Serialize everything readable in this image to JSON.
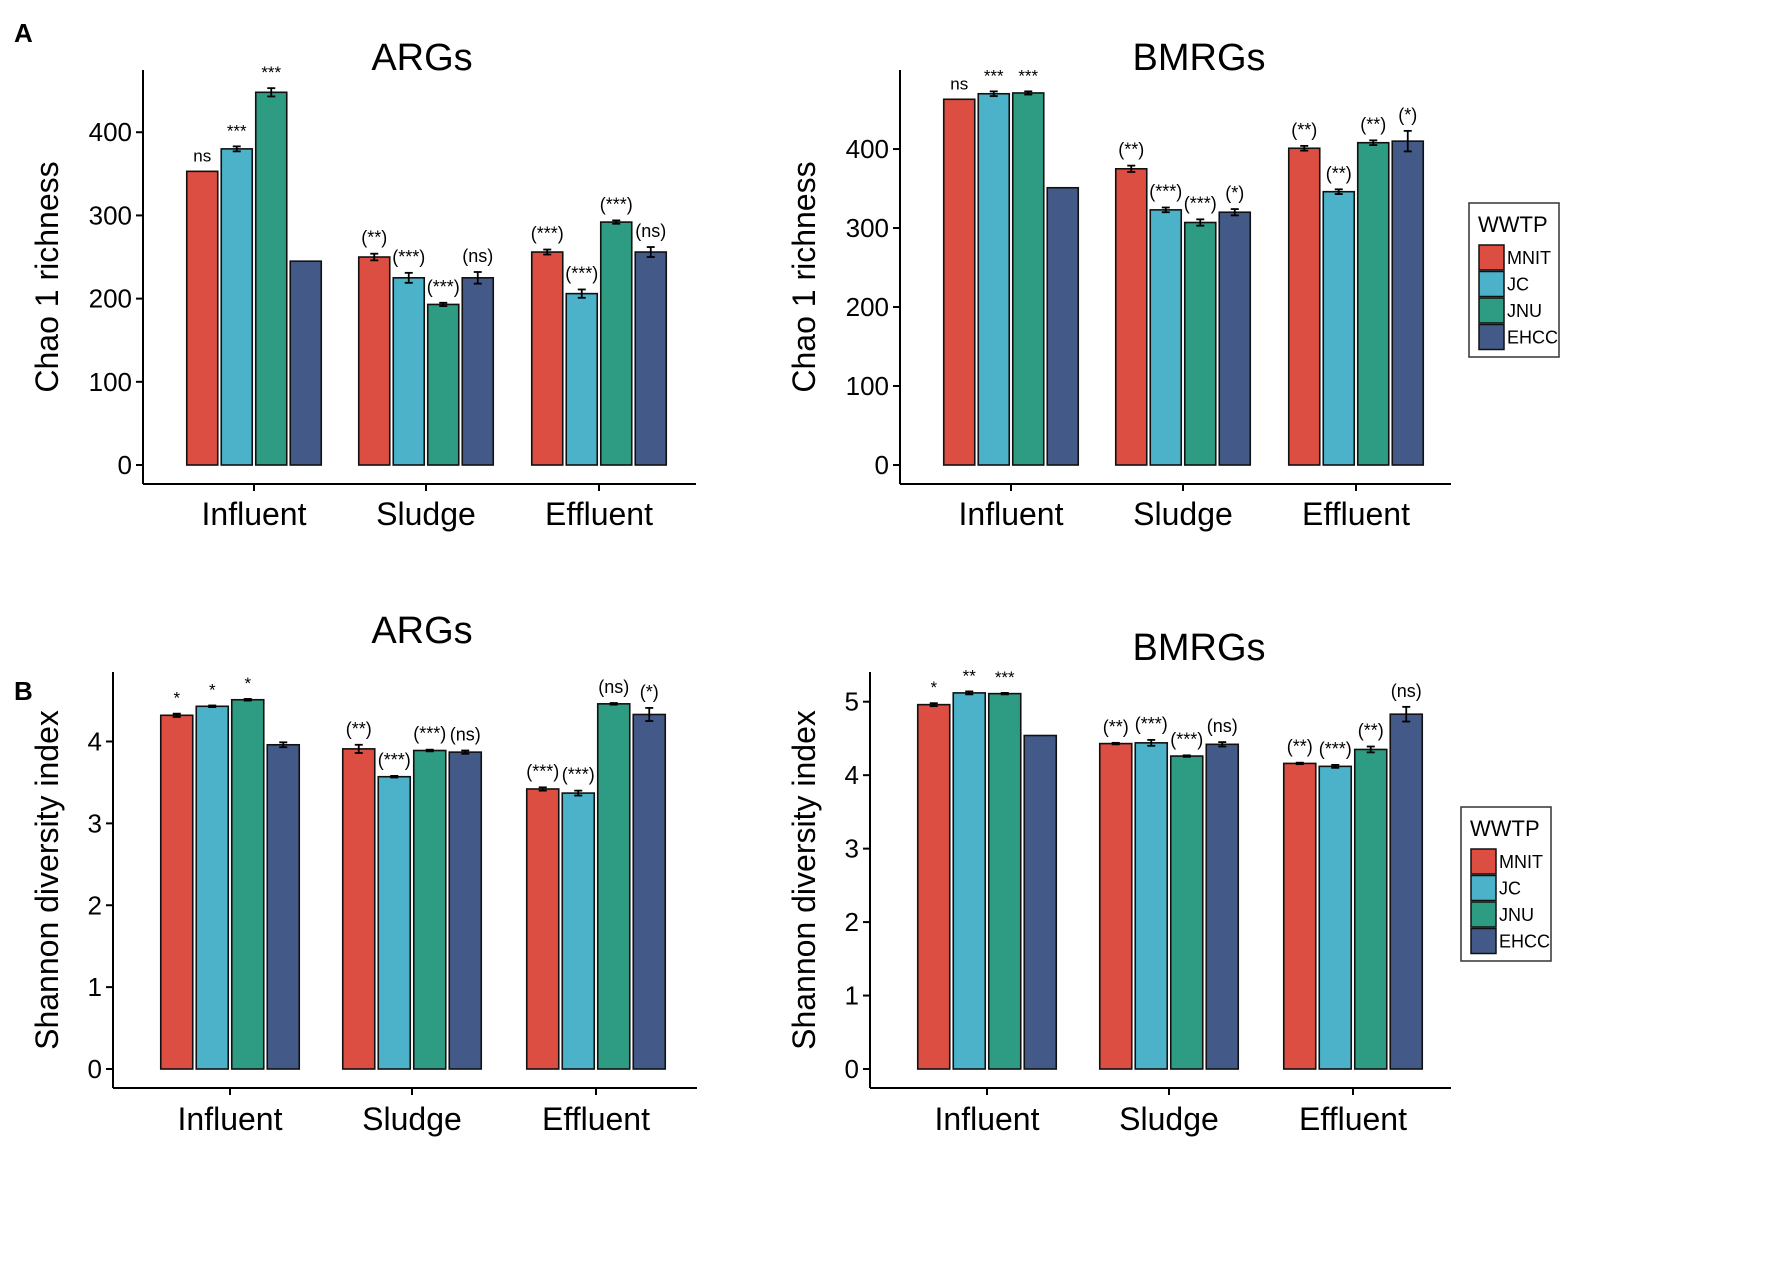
{
  "colors": {
    "MNIT": "#dc4e41",
    "JC": "#4bb2c9",
    "JNU": "#2e9c82",
    "EHCC": "#435a88"
  },
  "legend": {
    "title": "WWTP",
    "entries": [
      "MNIT",
      "JC",
      "JNU",
      "EHCC"
    ]
  },
  "panel_labels": [
    "A",
    "B"
  ],
  "chart_data": [
    {
      "type": "bar",
      "title": "ARGs",
      "ylabel": "Chao 1 richness",
      "ylim": [
        0,
        470
      ],
      "yticks": [
        0,
        100,
        200,
        300,
        400
      ],
      "categories": [
        "Influent",
        "Sludge",
        "Effluent"
      ],
      "series": [
        {
          "name": "MNIT",
          "values": [
            353,
            250,
            256
          ],
          "errors": [
            0,
            4,
            3
          ],
          "labels": [
            "ns",
            "(**)",
            "(***)"
          ]
        },
        {
          "name": "JC",
          "values": [
            380,
            225,
            206
          ],
          "errors": [
            3,
            6,
            5
          ],
          "labels": [
            "***",
            "(***)",
            "(***)"
          ]
        },
        {
          "name": "JNU",
          "values": [
            448,
            193,
            292
          ],
          "errors": [
            5,
            2,
            2
          ],
          "labels": [
            "***",
            "(***)",
            "(***)"
          ]
        },
        {
          "name": "EHCC",
          "values": [
            245,
            225,
            256
          ],
          "errors": [
            0,
            7,
            6
          ],
          "labels": [
            "",
            "(ns)",
            "(ns)"
          ]
        }
      ]
    },
    {
      "type": "bar",
      "title": "BMRGs",
      "ylabel": "Chao 1 richness",
      "ylim": [
        0,
        495
      ],
      "yticks": [
        0,
        100,
        200,
        300,
        400
      ],
      "categories": [
        "Influent",
        "Sludge",
        "Effluent"
      ],
      "series": [
        {
          "name": "MNIT",
          "values": [
            463,
            375,
            401
          ],
          "errors": [
            0,
            4,
            3
          ],
          "labels": [
            "ns",
            "(**)",
            "(**)"
          ]
        },
        {
          "name": "JC",
          "values": [
            470,
            323,
            346
          ],
          "errors": [
            3,
            3,
            3
          ],
          "labels": [
            "***",
            "(***)",
            "(**)"
          ]
        },
        {
          "name": "JNU",
          "values": [
            471,
            307,
            408
          ],
          "errors": [
            2,
            4,
            3
          ],
          "labels": [
            "***",
            "(***)",
            "(**)"
          ]
        },
        {
          "name": "EHCC",
          "values": [
            351,
            320,
            410
          ],
          "errors": [
            0,
            4,
            13
          ],
          "labels": [
            "",
            "(*)",
            "(*)"
          ]
        }
      ]
    },
    {
      "type": "bar",
      "title": "ARGs",
      "ylabel": "Shannon diversity index",
      "ylim": [
        0,
        4.8
      ],
      "yticks": [
        0,
        1,
        2,
        3,
        4
      ],
      "categories": [
        "Influent",
        "Sludge",
        "Effluent"
      ],
      "series": [
        {
          "name": "MNIT",
          "values": [
            4.32,
            3.91,
            3.42
          ],
          "errors": [
            0.02,
            0.05,
            0.02
          ],
          "labels": [
            "*",
            "(**)",
            "(***)"
          ]
        },
        {
          "name": "JC",
          "values": [
            4.43,
            3.57,
            3.37
          ],
          "errors": [
            0.01,
            0.01,
            0.03
          ],
          "labels": [
            "*",
            "(***)",
            "(***)"
          ]
        },
        {
          "name": "JNU",
          "values": [
            4.51,
            3.89,
            4.46
          ],
          "errors": [
            0.01,
            0.01,
            0.01
          ],
          "labels": [
            "*",
            "(***)",
            "(ns)"
          ]
        },
        {
          "name": "EHCC",
          "values": [
            3.96,
            3.87,
            4.33
          ],
          "errors": [
            0.03,
            0.02,
            0.08
          ],
          "labels": [
            "",
            "(ns)",
            "(*)"
          ]
        }
      ]
    },
    {
      "type": "bar",
      "title": "BMRGs",
      "ylabel": "Shannon diversity index",
      "ylim": [
        0,
        5.35
      ],
      "yticks": [
        0,
        1,
        2,
        3,
        4,
        5
      ],
      "categories": [
        "Influent",
        "Sludge",
        "Effluent"
      ],
      "series": [
        {
          "name": "MNIT",
          "values": [
            4.96,
            4.43,
            4.16
          ],
          "errors": [
            0.02,
            0.01,
            0.01
          ],
          "labels": [
            "*",
            "(**)",
            "(**)"
          ]
        },
        {
          "name": "JC",
          "values": [
            5.12,
            4.44,
            4.12
          ],
          "errors": [
            0.02,
            0.04,
            0.02
          ],
          "labels": [
            "**",
            "(***)",
            "(***)"
          ]
        },
        {
          "name": "JNU",
          "values": [
            5.11,
            4.26,
            4.35
          ],
          "errors": [
            0.01,
            0.01,
            0.04
          ],
          "labels": [
            "***",
            "(***)",
            "(**)"
          ]
        },
        {
          "name": "EHCC",
          "values": [
            4.54,
            4.42,
            4.83
          ],
          "errors": [
            0,
            0.03,
            0.1
          ],
          "labels": [
            "",
            "(ns)",
            "(ns)"
          ]
        }
      ]
    }
  ]
}
